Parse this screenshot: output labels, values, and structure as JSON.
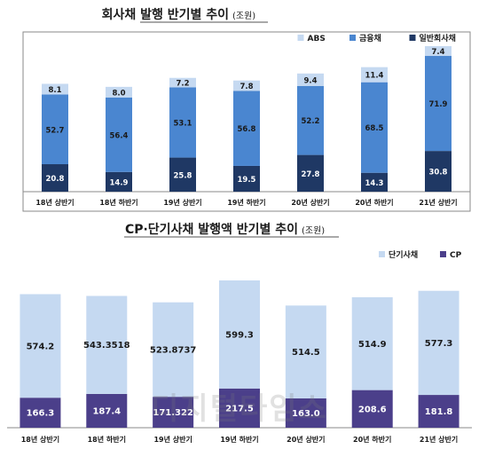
{
  "chart_data": [
    {
      "type": "bar",
      "stacked": true,
      "title": "회사채 발행 반기별 추이",
      "unit": "(조원)",
      "categories": [
        "18년 상반기",
        "18년 하반기",
        "19년 상반기",
        "19년 하반기",
        "20년 상반기",
        "20년 하반기",
        "21년 상반기"
      ],
      "series": [
        {
          "name": "일반회사채",
          "color": "#1f3864",
          "values": [
            20.8,
            14.9,
            25.8,
            19.5,
            27.8,
            14.3,
            30.8
          ],
          "labels": [
            "20.8",
            "14.9",
            "25.8",
            "19.5",
            "27.8",
            "14.3",
            "30.8"
          ]
        },
        {
          "name": "금융채",
          "color": "#4a86d0",
          "values": [
            52.7,
            56.4,
            53.1,
            56.8,
            52.2,
            68.5,
            71.9
          ],
          "labels": [
            "52.7",
            "56.4",
            "53.1",
            "56.8",
            "52.2",
            "68.5",
            "71.9"
          ]
        },
        {
          "name": "ABS",
          "color": "#c5d9f1",
          "values": [
            8.1,
            8.0,
            7.2,
            7.8,
            9.4,
            11.4,
            7.4
          ],
          "labels": [
            "8.1",
            "8.0",
            "7.2",
            "7.8",
            "9.4",
            "11.4",
            "7.4"
          ]
        }
      ],
      "legend_position": "top-right",
      "grid": false
    },
    {
      "type": "bar",
      "stacked": true,
      "title": "CP·단기사채 발행액 반기별 추이",
      "unit": "(조원)",
      "categories": [
        "18년 상반기",
        "18년 하반기",
        "19년 상반기",
        "19년 하반기",
        "20년 상반기",
        "20년 하반기",
        "21년 상반기"
      ],
      "series": [
        {
          "name": "CP",
          "color": "#4b3f8a",
          "values": [
            166.3,
            187.4,
            171.3,
            217.5,
            163.0,
            208.6,
            181.8
          ],
          "labels": [
            "166.3",
            "187.4",
            "171.322",
            "217.5",
            "163.0",
            "208.6",
            "181.8"
          ]
        },
        {
          "name": "단기사채",
          "color": "#c5d9f1",
          "values": [
            574.2,
            543.3518,
            523.8737,
            599.3,
            514.5,
            514.9,
            577.3
          ],
          "labels": [
            "574.2",
            "543.3518",
            "523.8737",
            "599.3",
            "514.5",
            "514.9",
            "577.3"
          ]
        }
      ],
      "legend_position": "top-right",
      "grid": false
    }
  ],
  "watermark": "디지털타임스"
}
